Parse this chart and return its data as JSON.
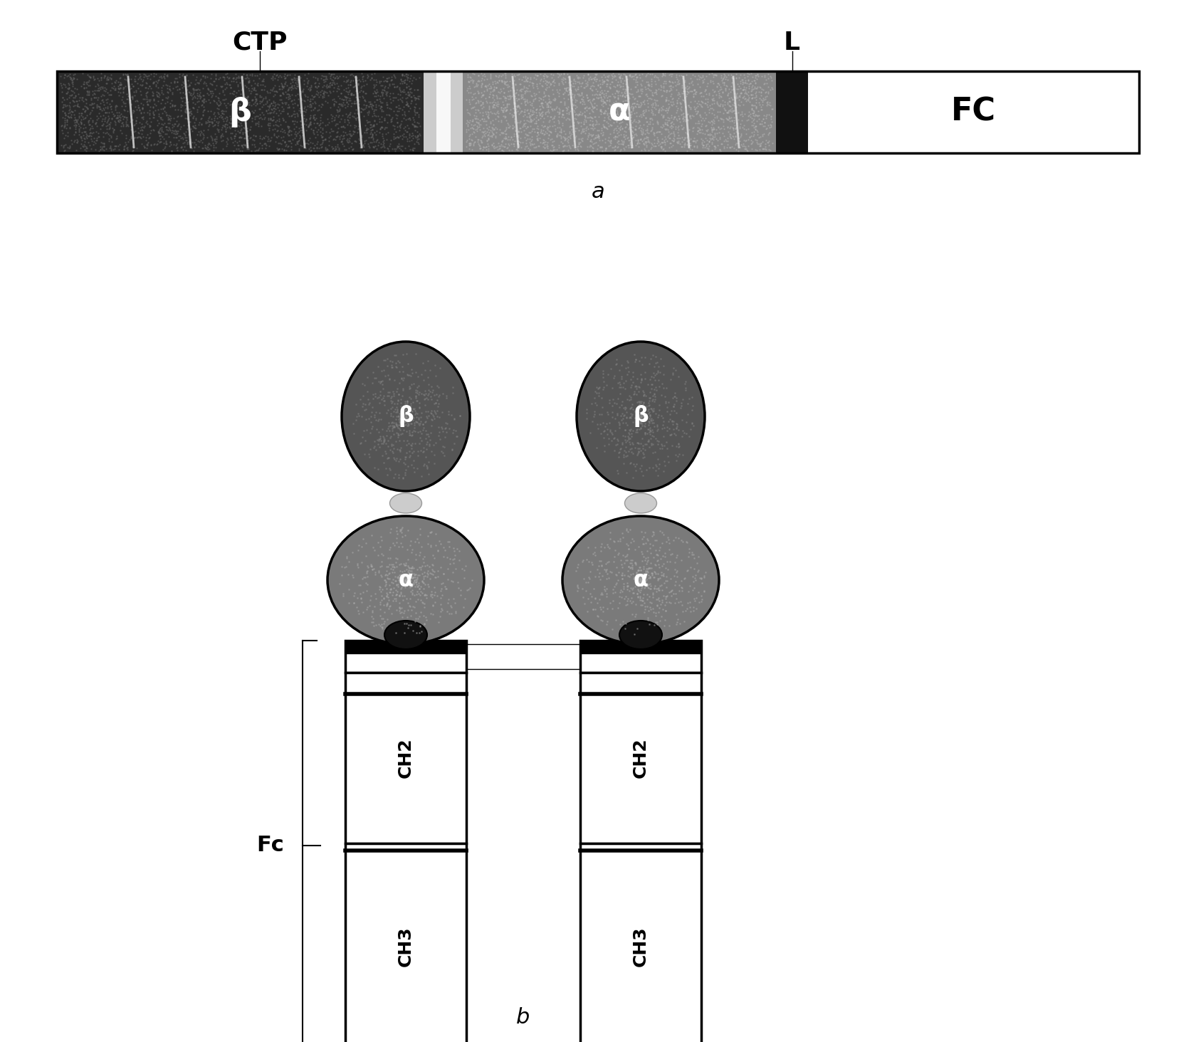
{
  "fig_width": 16.8,
  "fig_height": 14.64,
  "bg_color": "#ffffff",
  "panel_a_label": "a",
  "panel_b_label": "b",
  "beta_label": "β",
  "alpha_label": "α",
  "ctp_label": "CTP",
  "l_label": "L",
  "fc_label": "FC",
  "ch2_label": "CH2",
  "ch3_label": "CH3",
  "fc_brace_label": "Fc",
  "beta_color": "#3a3a3a",
  "alpha_color": "#7a7a7a",
  "ctp_color": "#e0e0e0",
  "linker_color": "#111111",
  "ellipse_alpha_color": "#888888",
  "ellipse_beta_color": "#555555"
}
